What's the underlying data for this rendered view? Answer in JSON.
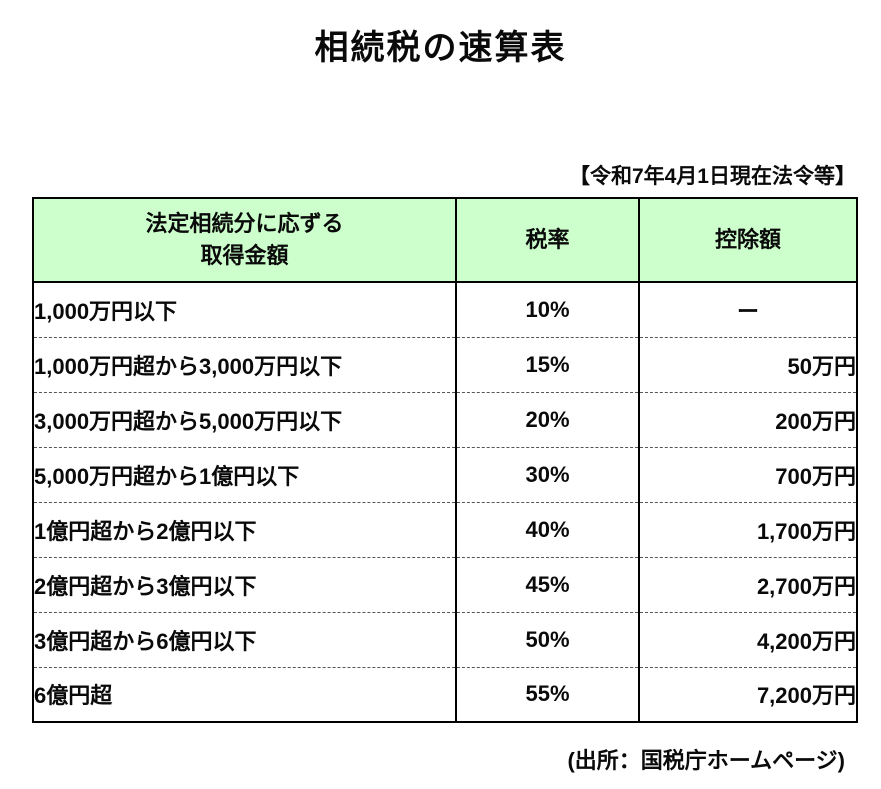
{
  "page": {
    "title": "相続税の速算表",
    "law_note": "【令和7年4月1日現在法令等】",
    "source_note": "(出所：国税庁ホームページ)"
  },
  "table": {
    "colors": {
      "header_bg": "#ccffcc",
      "border": "#000000"
    },
    "header": {
      "col1_line1": "法定相続分に応ずる",
      "col1_line2": "取得金額",
      "col2": "税率",
      "col3": "控除額"
    },
    "rows": [
      {
        "range": "1,000万円以下",
        "rate": "10%",
        "deduction": "ー"
      },
      {
        "range": "1,000万円超から3,000万円以下",
        "rate": "15%",
        "deduction": "50万円"
      },
      {
        "range": "3,000万円超から5,000万円以下",
        "rate": "20%",
        "deduction": "200万円"
      },
      {
        "range": "5,000万円超から1億円以下",
        "rate": "30%",
        "deduction": "700万円"
      },
      {
        "range": "1億円超から2億円以下",
        "rate": "40%",
        "deduction": "1,700万円"
      },
      {
        "range": "2億円超から3億円以下",
        "rate": "45%",
        "deduction": "2,700万円"
      },
      {
        "range": "3億円超から6億円以下",
        "rate": "50%",
        "deduction": "4,200万円"
      },
      {
        "range": "6億円超",
        "rate": "55%",
        "deduction": "7,200万円"
      }
    ]
  }
}
